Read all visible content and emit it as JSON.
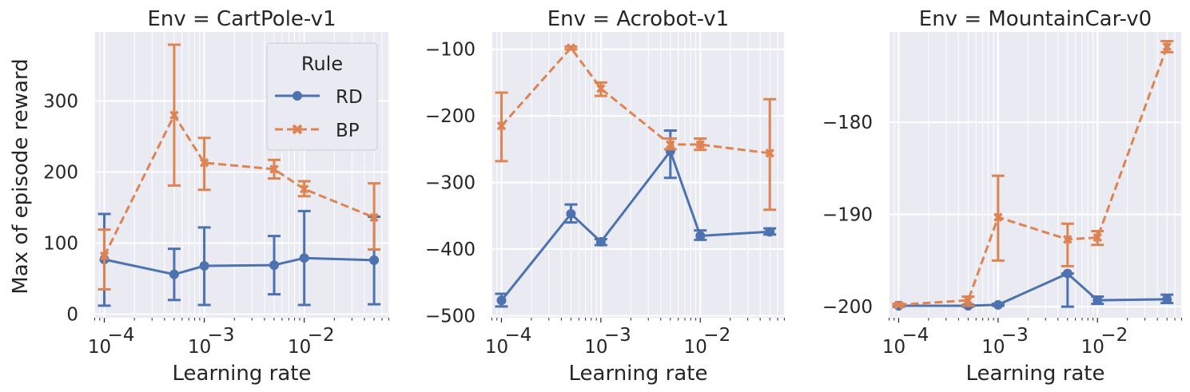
{
  "figure": {
    "ylabel": "Max of episode reward",
    "xlabel": "Learning rate",
    "legend": {
      "title": "Rule",
      "location": "upper-right of first panel",
      "items": [
        {
          "label": "RD",
          "color": "#4c72b0",
          "marker": "circle",
          "linestyle": "solid"
        },
        {
          "label": "BP",
          "color": "#dd8452",
          "marker": "x",
          "linestyle": "dashed"
        }
      ]
    }
  },
  "chart_data": [
    {
      "type": "line",
      "title": "Env = CartPole-v1",
      "xlabel": "Learning rate",
      "ylabel": "Max of episode reward",
      "xscale": "log",
      "xlim": [
        7.94e-05,
        0.0708
      ],
      "ylim": [
        -5,
        397
      ],
      "x_ticks": [
        0.0001,
        0.001,
        0.01
      ],
      "x_tick_labels": [
        "10",
        "10",
        "10"
      ],
      "x_tick_exponents": [
        "−4",
        "−3",
        "−2"
      ],
      "y_ticks": [
        0,
        100,
        200,
        300
      ],
      "y_tick_labels": [
        "0",
        "100",
        "200",
        "300"
      ],
      "x": [
        0.0001,
        0.0005,
        0.001,
        0.005,
        0.01,
        0.05
      ],
      "series": [
        {
          "name": "RD",
          "values": [
            77,
            56,
            68,
            69,
            79,
            76
          ],
          "err_low": [
            12,
            20,
            13,
            28,
            13,
            14
          ],
          "err_high": [
            141,
            92,
            122,
            110,
            145,
            137
          ]
        },
        {
          "name": "BP",
          "values": [
            82,
            280,
            213,
            204,
            176,
            136
          ],
          "err_low": [
            35,
            181,
            175,
            191,
            166,
            91
          ],
          "err_high": [
            119,
            379,
            248,
            217,
            187,
            184
          ]
        }
      ],
      "grid": true
    },
    {
      "type": "line",
      "title": "Env = Acrobot-v1",
      "xlabel": "Learning rate",
      "ylabel": "",
      "xscale": "log",
      "xlim": [
        7.94e-05,
        0.0708
      ],
      "ylim": [
        -503,
        -74
      ],
      "x_ticks": [
        0.0001,
        0.001,
        0.01
      ],
      "x_tick_labels": [
        "10",
        "10",
        "10"
      ],
      "x_tick_exponents": [
        "−4",
        "−3",
        "−2"
      ],
      "y_ticks": [
        -500,
        -400,
        -300,
        -200,
        -100
      ],
      "y_tick_labels": [
        "−500",
        "−400",
        "−300",
        "−200",
        "−100"
      ],
      "x": [
        0.0001,
        0.0005,
        0.001,
        0.005,
        0.01,
        0.05
      ],
      "series": [
        {
          "name": "RD",
          "values": [
            -477,
            -347,
            -389,
            -253,
            -380,
            -374
          ],
          "err_low": [
            -486,
            -360,
            -394,
            -293,
            -386,
            -378
          ],
          "err_high": [
            -467,
            -333,
            -385,
            -222,
            -372,
            -369
          ]
        },
        {
          "name": "BP",
          "values": [
            -215,
            -98,
            -159,
            -243,
            -243,
            -256
          ],
          "err_low": [
            -268,
            -100,
            -170,
            -250,
            -251,
            -341
          ],
          "err_high": [
            -165,
            -96,
            -150,
            -234,
            -234,
            -175
          ]
        }
      ],
      "grid": true
    },
    {
      "type": "line",
      "title": "Env = MountainCar-v0",
      "xlabel": "Learning rate",
      "ylabel": "",
      "xscale": "log",
      "xlim": [
        7.94e-05,
        0.0708
      ],
      "ylim": [
        -201.2,
        -170.2
      ],
      "x_ticks": [
        0.0001,
        0.001,
        0.01
      ],
      "x_tick_labels": [
        "10",
        "10",
        "10"
      ],
      "x_tick_exponents": [
        "−4",
        "−3",
        "−2"
      ],
      "y_ticks": [
        -200,
        -190,
        -180
      ],
      "y_tick_labels": [
        "−200",
        "−190",
        "−180"
      ],
      "x": [
        0.0001,
        0.0005,
        0.001,
        0.005,
        0.01,
        0.05
      ],
      "series": [
        {
          "name": "RD",
          "values": [
            -199.9,
            -199.9,
            -199.8,
            -196.4,
            -199.3,
            -199.2
          ],
          "err_low": [
            -200.0,
            -200.0,
            -199.9,
            -200.0,
            -199.7,
            -199.6
          ],
          "err_high": [
            -199.8,
            -199.8,
            -199.7,
            -196.4,
            -198.9,
            -198.7
          ]
        },
        {
          "name": "BP",
          "values": [
            -199.8,
            -199.3,
            -190.3,
            -192.7,
            -192.5,
            -171.8
          ],
          "err_low": [
            -199.9,
            -199.9,
            -195.0,
            -195.6,
            -193.3,
            -172.4
          ],
          "err_high": [
            -199.7,
            -198.9,
            -185.8,
            -191.0,
            -191.8,
            -171.2
          ]
        }
      ],
      "grid": true
    }
  ]
}
